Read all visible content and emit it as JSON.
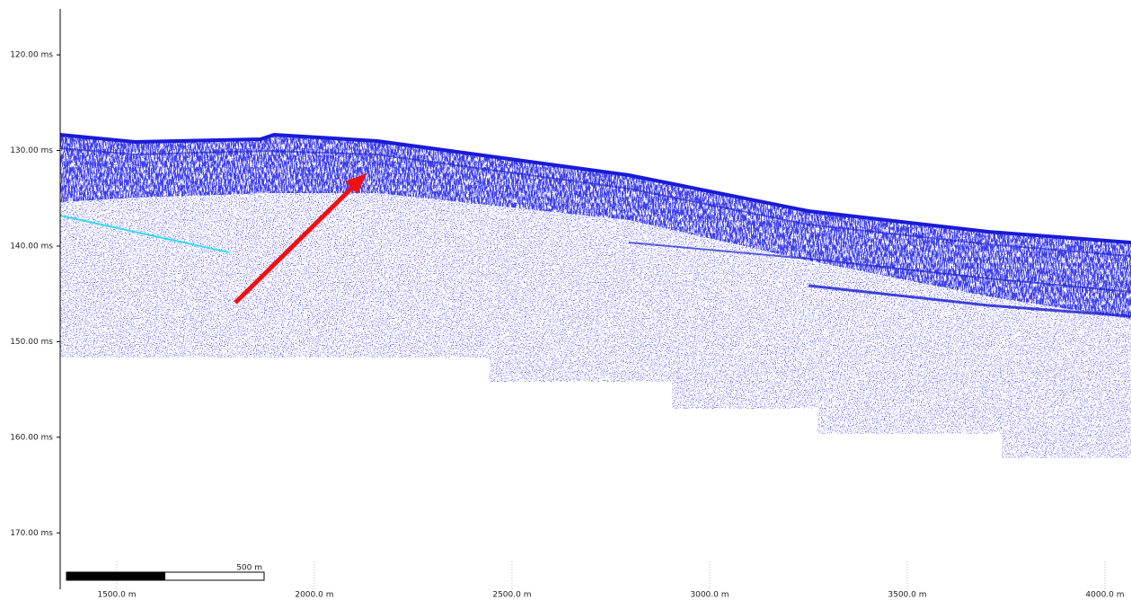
{
  "chart_data": {
    "type": "seismic",
    "xlim": [
      1357,
      4066
    ],
    "ylim": [
      115.2,
      175.8
    ],
    "xticks": [
      {
        "value": 1500,
        "label": "1500.0 m"
      },
      {
        "value": 2000,
        "label": "2000.0 m"
      },
      {
        "value": 2500,
        "label": "2500.0 m"
      },
      {
        "value": 3000,
        "label": "3000.0 m"
      },
      {
        "value": 3500,
        "label": "3500.0 m"
      },
      {
        "value": 4000,
        "label": "4000.0 m"
      }
    ],
    "yticks": [
      {
        "value": 120,
        "label": "120.00 ms"
      },
      {
        "value": 130,
        "label": "130.00 ms"
      },
      {
        "value": 140,
        "label": "140.00 ms"
      },
      {
        "value": 150,
        "label": "150.00 ms"
      },
      {
        "value": 160,
        "label": "160.00 ms"
      },
      {
        "value": 170,
        "label": "170.00 ms"
      }
    ],
    "scale_bar": {
      "value": 500,
      "label": "500 m"
    }
  }
}
